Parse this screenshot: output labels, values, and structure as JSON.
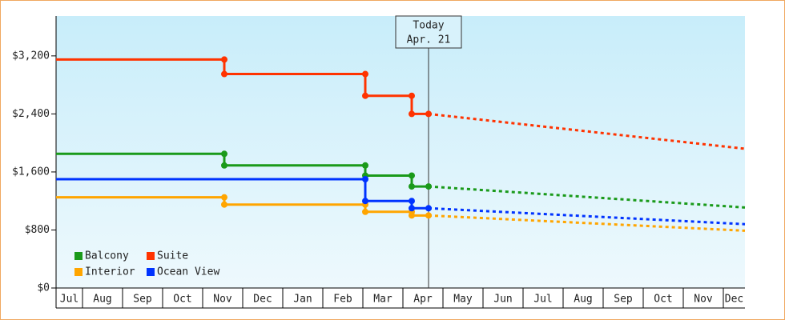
{
  "chart_data": {
    "type": "line",
    "x": [
      0.34,
      4.54,
      4.54,
      8.06,
      8.06,
      9.22,
      9.22,
      9.64
    ],
    "forecast_x": [
      9.64,
      17.54
    ],
    "xlim": [
      0.34,
      17.54
    ],
    "xticks": [
      {
        "value": 0,
        "label": "Jul"
      },
      {
        "value": 1,
        "label": "Aug"
      },
      {
        "value": 2,
        "label": "Sep"
      },
      {
        "value": 3,
        "label": "Oct"
      },
      {
        "value": 4,
        "label": "Nov"
      },
      {
        "value": 5,
        "label": "Dec"
      },
      {
        "value": 6,
        "label": "Jan"
      },
      {
        "value": 7,
        "label": "Feb"
      },
      {
        "value": 8,
        "label": "Mar"
      },
      {
        "value": 9,
        "label": "Apr"
      },
      {
        "value": 10,
        "label": "May"
      },
      {
        "value": 11,
        "label": "Jun"
      },
      {
        "value": 12,
        "label": "Jul"
      },
      {
        "value": 13,
        "label": "Aug"
      },
      {
        "value": 14,
        "label": "Sep"
      },
      {
        "value": 15,
        "label": "Oct"
      },
      {
        "value": 16,
        "label": "Nov"
      },
      {
        "value": 17,
        "label": "Dec"
      }
    ],
    "ylim": [
      0,
      3750
    ],
    "yticks": [
      {
        "value": 0,
        "label": "$0"
      },
      {
        "value": 800,
        "label": "$800"
      },
      {
        "value": 1600,
        "label": "$1,600"
      },
      {
        "value": 2400,
        "label": "$2,400"
      },
      {
        "value": 3200,
        "label": "$3,200"
      }
    ],
    "today_x": 9.64,
    "today_label": "Today",
    "today_date": "Apr. 21",
    "series": [
      {
        "name": "Balcony",
        "color": "#1a9a1a",
        "values": [
          1850,
          1850,
          1690,
          1690,
          1550,
          1550,
          1400,
          1400
        ],
        "forecast": [
          1400,
          1110
        ]
      },
      {
        "name": "Suite",
        "color": "#ff3300",
        "values": [
          3150,
          3150,
          2950,
          2950,
          2650,
          2650,
          2400,
          2400
        ],
        "forecast": [
          2400,
          1920
        ]
      },
      {
        "name": "Interior",
        "color": "#ffa500",
        "values": [
          1250,
          1250,
          1150,
          1150,
          1050,
          1050,
          1000,
          1000
        ],
        "forecast": [
          1000,
          790
        ]
      },
      {
        "name": "Ocean View",
        "color": "#0033ff",
        "values": [
          1500,
          1500,
          1500,
          1500,
          1200,
          1200,
          1100,
          1100
        ],
        "forecast": [
          1100,
          880
        ]
      }
    ]
  }
}
